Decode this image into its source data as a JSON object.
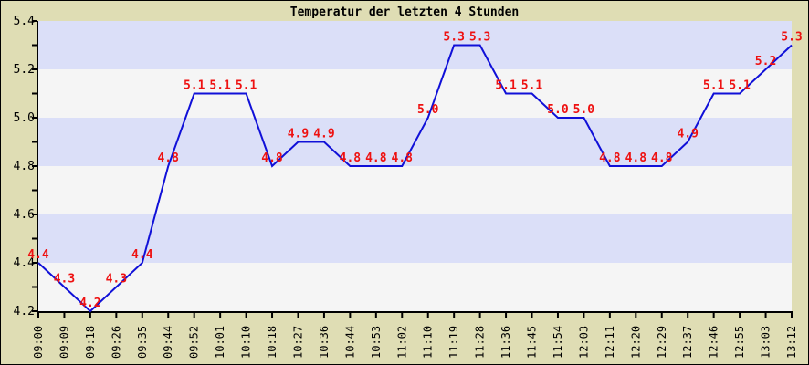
{
  "chart_data": {
    "type": "line",
    "title": "Temperatur der letzten 4 Stunden",
    "x": [
      "09:00",
      "09:09",
      "09:18",
      "09:26",
      "09:35",
      "09:44",
      "09:52",
      "10:01",
      "10:10",
      "10:18",
      "10:27",
      "10:36",
      "10:44",
      "10:53",
      "11:02",
      "11:10",
      "11:19",
      "11:28",
      "11:36",
      "11:45",
      "11:54",
      "12:03",
      "12:11",
      "12:20",
      "12:29",
      "12:37",
      "12:46",
      "12:55",
      "13:03",
      "13:12"
    ],
    "values": [
      4.4,
      4.3,
      4.2,
      4.3,
      4.4,
      4.8,
      5.1,
      5.1,
      5.1,
      4.8,
      4.9,
      4.9,
      4.8,
      4.8,
      4.8,
      5.0,
      5.3,
      5.3,
      5.1,
      5.1,
      5.0,
      5.0,
      4.8,
      4.8,
      4.8,
      4.9,
      5.1,
      5.1,
      5.2,
      5.3
    ],
    "point_labels": [
      "4.4",
      "4.3",
      "4.2",
      "4.3",
      "4.4",
      "4.8",
      "5.1",
      "5.1",
      "5.1",
      "4.8",
      "4.9",
      "4.9",
      "4.8",
      "4.8",
      "4.8",
      "5.0",
      "5.3",
      "5.3",
      "5.1",
      "5.1",
      "5.0",
      "5.0",
      "4.8",
      "4.8",
      "4.8",
      "4.9",
      "5.1",
      "5.1",
      "5.2",
      "5.3"
    ],
    "xlabel": "",
    "ylabel": "",
    "ylim": [
      4.2,
      5.4
    ],
    "ytick_labels": [
      "5.4",
      "5.2",
      "5.0",
      "4.8",
      "4.6",
      "4.4",
      "4.2"
    ],
    "ytick_major_step": 0.2,
    "ytick_minor_step": 0.1,
    "legend": null,
    "grid": "alternating-horizontal-bands",
    "colors": {
      "background": "#dfddb4",
      "band_even": "#dbdff8",
      "band_odd": "#f5f5f5",
      "line": "#1010d8",
      "value_label": "#ee1111",
      "axis": "#000000",
      "tick_text": "#000000"
    }
  }
}
